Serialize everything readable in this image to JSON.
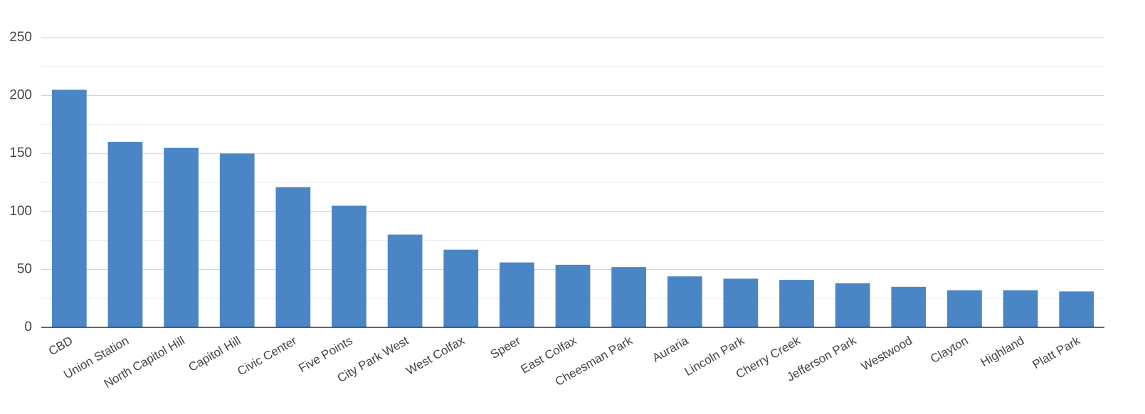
{
  "chart_data": {
    "type": "bar",
    "categories": [
      "CBD",
      "Union Station",
      "North Capitol Hill",
      "Capitol Hill",
      "Civic Center",
      "Five Points",
      "City Park West",
      "West Colfax",
      "Speer",
      "East Colfax",
      "Cheesman Park",
      "Auraria",
      "Lincoln Park",
      "Cherry Creek",
      "Jefferson Park",
      "Westwood",
      "Clayton",
      "Highland",
      "Platt Park"
    ],
    "values": [
      205,
      160,
      155,
      150,
      121,
      105,
      80,
      67,
      56,
      54,
      52,
      44,
      42,
      41,
      38,
      35,
      32,
      32,
      31
    ],
    "color": "#4a86c5",
    "ylim": [
      0,
      250
    ],
    "yticks": [
      0,
      50,
      100,
      150,
      200,
      250
    ],
    "minor_grid": [
      25,
      75,
      125,
      175,
      225
    ],
    "grid": true
  }
}
